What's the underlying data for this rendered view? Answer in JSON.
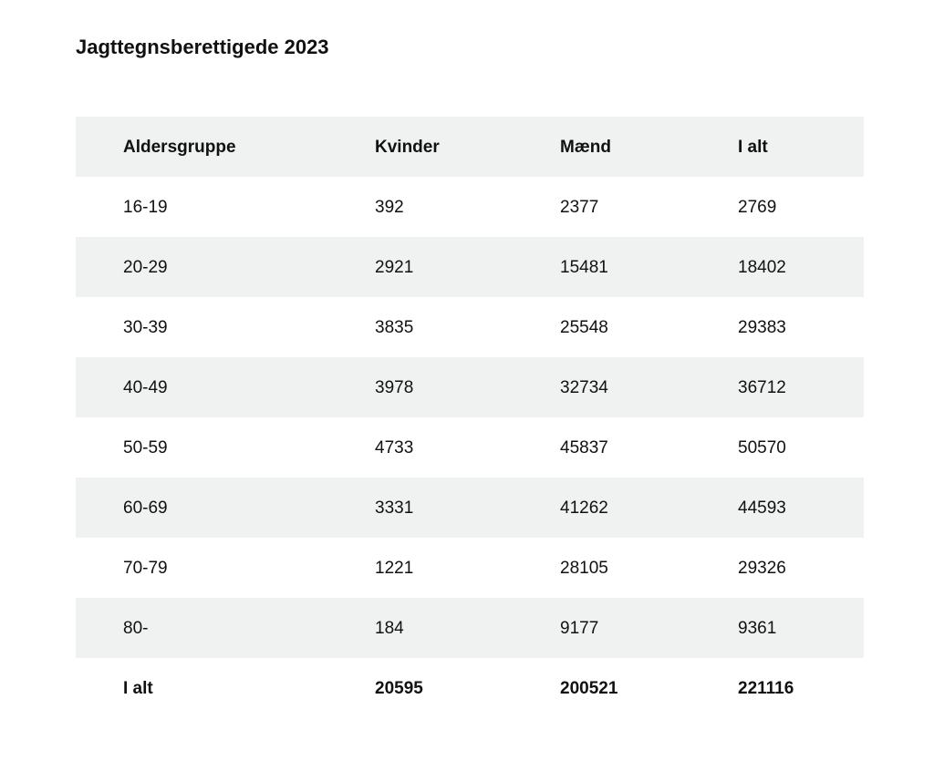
{
  "page": {
    "title": "Jagttegnsberettigede 2023"
  },
  "colors": {
    "page_bg": "#ffffff",
    "row_alt_bg": "#eff2f1",
    "text": "#111111"
  },
  "table": {
    "headers": [
      "Aldersgruppe",
      "Kvinder",
      "Mænd",
      "I alt"
    ],
    "rows": [
      {
        "cells": [
          "16-19",
          "392",
          "2377",
          "2769"
        ]
      },
      {
        "cells": [
          "20-29",
          "2921",
          "15481",
          "18402"
        ]
      },
      {
        "cells": [
          "30-39",
          "3835",
          "25548",
          "29383"
        ]
      },
      {
        "cells": [
          "40-49",
          "3978",
          "32734",
          "36712"
        ]
      },
      {
        "cells": [
          "50-59",
          "4733",
          "45837",
          "50570"
        ]
      },
      {
        "cells": [
          "60-69",
          "3331",
          "41262",
          "44593"
        ]
      },
      {
        "cells": [
          "70-79",
          "1221",
          "28105",
          "29326"
        ]
      },
      {
        "cells": [
          "80-",
          "184",
          "9177",
          "9361"
        ]
      }
    ],
    "total_row": {
      "cells": [
        "I alt",
        "20595",
        "200521",
        "221116"
      ]
    }
  },
  "chart_data": {
    "type": "table",
    "title": "Jagttegnsberettigede 2023",
    "columns": [
      "Aldersgruppe",
      "Kvinder",
      "Mænd",
      "I alt"
    ],
    "rows": [
      [
        "16-19",
        392,
        2377,
        2769
      ],
      [
        "20-29",
        2921,
        15481,
        18402
      ],
      [
        "30-39",
        3835,
        25548,
        29383
      ],
      [
        "40-49",
        3978,
        32734,
        36712
      ],
      [
        "50-59",
        4733,
        45837,
        50570
      ],
      [
        "60-69",
        3331,
        41262,
        44593
      ],
      [
        "70-79",
        1221,
        28105,
        29326
      ],
      [
        "80-",
        184,
        9177,
        9361
      ]
    ],
    "totals": [
      "I alt",
      20595,
      200521,
      221116
    ],
    "layout": {
      "striped": true,
      "header_bg": "#eff2f1",
      "borders": false
    }
  }
}
